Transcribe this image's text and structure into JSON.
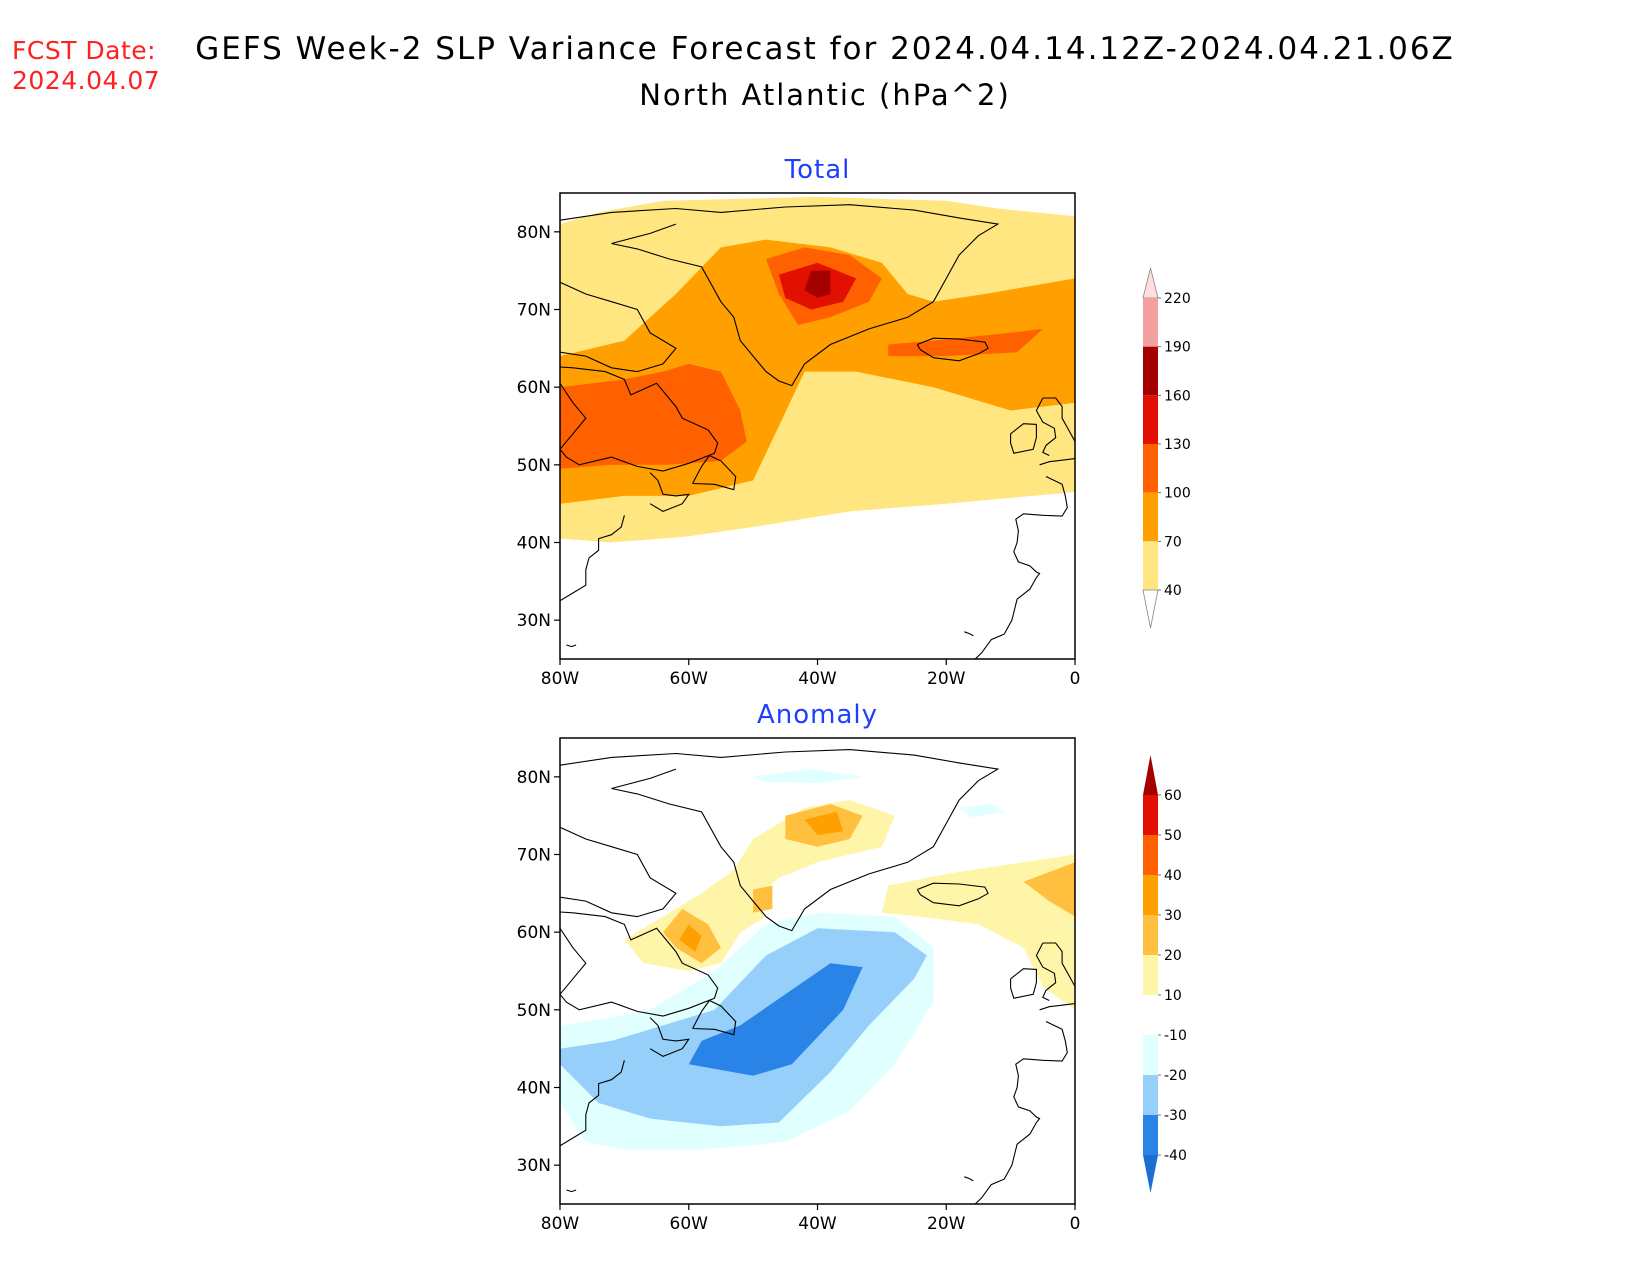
{
  "header": {
    "fcst_label": "FCST Date:",
    "fcst_date": "2024.04.07",
    "title": "GEFS Week-2 SLP Variance Forecast for 2024.04.14.12Z-2024.04.21.06Z",
    "subtitle": "North Atlantic (hPa^2)"
  },
  "map": {
    "lon_range": [
      -80,
      0
    ],
    "lat_range": [
      25,
      85
    ],
    "lat_ticks": [
      {
        "v": 80,
        "label": "80N"
      },
      {
        "v": 70,
        "label": "70N"
      },
      {
        "v": 60,
        "label": "60N"
      },
      {
        "v": 50,
        "label": "50N"
      },
      {
        "v": 40,
        "label": "40N"
      },
      {
        "v": 30,
        "label": "30N"
      }
    ],
    "lon_ticks": [
      {
        "v": -80,
        "label": "80W"
      },
      {
        "v": -60,
        "label": "60W"
      },
      {
        "v": -40,
        "label": "40W"
      },
      {
        "v": -20,
        "label": "20W"
      },
      {
        "v": 0,
        "label": "0"
      }
    ]
  },
  "panels": [
    {
      "title": "Total",
      "title_color": "#1f3fff",
      "legend": {
        "levels": [
          40,
          70,
          100,
          130,
          160,
          190,
          220
        ],
        "colors": [
          "#ffe680",
          "#ffa000",
          "#ff6000",
          "#e11000",
          "#a50000",
          "#f4a0a0",
          "#ffdede"
        ]
      },
      "regions": [
        {
          "level": 40,
          "pts": [
            [
              -80,
              81
            ],
            [
              -74,
              82.5
            ],
            [
              -64,
              84
            ],
            [
              -40,
              84.5
            ],
            [
              -20,
              84
            ],
            [
              -12,
              83
            ],
            [
              0,
              82
            ],
            [
              0,
              46.5
            ],
            [
              -20,
              45
            ],
            [
              -35,
              44
            ],
            [
              -50,
              42
            ],
            [
              -60,
              40.8
            ],
            [
              -72,
              40
            ],
            [
              -80,
              40.5
            ]
          ]
        },
        {
          "level": 70,
          "pts": [
            [
              -80,
              64
            ],
            [
              -70,
              66
            ],
            [
              -62,
              72
            ],
            [
              -55,
              78
            ],
            [
              -48,
              79
            ],
            [
              -38,
              78
            ],
            [
              -30,
              76
            ],
            [
              -26,
              72
            ],
            [
              -22,
              71
            ],
            [
              -14,
              72
            ],
            [
              0,
              74
            ],
            [
              0,
              58
            ],
            [
              -10,
              57
            ],
            [
              -22,
              60
            ],
            [
              -34,
              62
            ],
            [
              -42,
              62
            ],
            [
              -46,
              55
            ],
            [
              -50,
              48
            ],
            [
              -60,
              46
            ],
            [
              -70,
              46
            ],
            [
              -80,
              45
            ]
          ]
        },
        {
          "level": 100,
          "pts": [
            [
              -80,
              60
            ],
            [
              -70,
              61
            ],
            [
              -64,
              62
            ],
            [
              -60,
              63
            ],
            [
              -55,
              62
            ],
            [
              -52,
              57
            ],
            [
              -51,
              53
            ],
            [
              -55,
              50.5
            ],
            [
              -63,
              50
            ],
            [
              -72,
              50
            ],
            [
              -80,
              49.5
            ]
          ]
        },
        {
          "level": 100,
          "pts": [
            [
              -48,
              76.5
            ],
            [
              -42,
              78
            ],
            [
              -35,
              77
            ],
            [
              -30,
              74
            ],
            [
              -32,
              71
            ],
            [
              -38,
              69
            ],
            [
              -43,
              68
            ],
            [
              -46,
              72
            ]
          ]
        },
        {
          "level": 100,
          "pts": [
            [
              -29,
              65.5
            ],
            [
              -22,
              66
            ],
            [
              -10,
              67
            ],
            [
              -5,
              67.5
            ],
            [
              -9,
              64.5
            ],
            [
              -20,
              64
            ],
            [
              -29,
              64
            ]
          ]
        },
        {
          "level": 130,
          "pts": [
            [
              -46,
              74.5
            ],
            [
              -40,
              76
            ],
            [
              -34,
              74
            ],
            [
              -36,
              71
            ],
            [
              -41,
              70
            ],
            [
              -45,
              71.5
            ]
          ]
        },
        {
          "level": 160,
          "pts": [
            [
              -41,
              75
            ],
            [
              -38,
              75
            ],
            [
              -38,
              72
            ],
            [
              -40,
              71.5
            ],
            [
              -42,
              72.5
            ]
          ]
        }
      ]
    },
    {
      "title": "Anomaly",
      "title_color": "#1f3fff",
      "legend": {
        "levels": [
          -40,
          -30,
          -20,
          -10,
          10,
          20,
          30,
          40,
          50,
          60
        ],
        "colors": [
          "#1a6fd0",
          "#2a84e8",
          "#96d0fa",
          "#e0ffff",
          "#ffffff",
          "#fff5a8",
          "#ffc040",
          "#ffa000",
          "#ff6000",
          "#e11000",
          "#a50000"
        ]
      },
      "regions": [
        {
          "level": -10,
          "pts": [
            [
              -80,
              38
            ],
            [
              -76,
              33
            ],
            [
              -70,
              32
            ],
            [
              -58,
              32
            ],
            [
              -45,
              33
            ],
            [
              -35,
              37
            ],
            [
              -28,
              43
            ],
            [
              -22,
              51
            ],
            [
              -22,
              58
            ],
            [
              -28,
              62
            ],
            [
              -40,
              62.5
            ],
            [
              -48,
              61
            ],
            [
              -56,
              55
            ],
            [
              -60,
              53
            ],
            [
              -66,
              50
            ],
            [
              -72,
              49
            ],
            [
              -80,
              48
            ]
          ]
        },
        {
          "level": -10,
          "pts": [
            [
              -50,
              80
            ],
            [
              -41,
              81
            ],
            [
              -33,
              80
            ],
            [
              -40,
              79.2
            ],
            [
              -48,
              79.3
            ]
          ]
        },
        {
          "level": -10,
          "pts": [
            [
              -18,
              76
            ],
            [
              -13,
              76.5
            ],
            [
              -11,
              75.5
            ],
            [
              -16,
              74.8
            ]
          ]
        },
        {
          "level": -20,
          "pts": [
            [
              -80,
              43
            ],
            [
              -74,
              38
            ],
            [
              -66,
              36
            ],
            [
              -55,
              35
            ],
            [
              -46,
              35.5
            ],
            [
              -38,
              42
            ],
            [
              -32,
              48
            ],
            [
              -25,
              54
            ],
            [
              -23,
              57
            ],
            [
              -28,
              60
            ],
            [
              -40,
              60.5
            ],
            [
              -48,
              57
            ],
            [
              -56,
              50
            ],
            [
              -64,
              48
            ],
            [
              -72,
              46
            ],
            [
              -80,
              45
            ]
          ]
        },
        {
          "level": -30,
          "pts": [
            [
              -60,
              43
            ],
            [
              -50,
              41.5
            ],
            [
              -44,
              43
            ],
            [
              -36,
              50
            ],
            [
              -33,
              55.5
            ],
            [
              -38,
              56
            ],
            [
              -45,
              52
            ],
            [
              -52,
              48
            ],
            [
              -58,
              46
            ]
          ]
        },
        {
          "level": 10,
          "pts": [
            [
              -50,
              72
            ],
            [
              -42,
              76
            ],
            [
              -35,
              77
            ],
            [
              -28,
              75
            ],
            [
              -30,
              71
            ],
            [
              -40,
              69
            ],
            [
              -46,
              67
            ],
            [
              -50,
              64
            ],
            [
              -48,
              62
            ],
            [
              -52,
              60
            ],
            [
              -55,
              56
            ],
            [
              -60,
              55
            ],
            [
              -67,
              56
            ],
            [
              -70,
              59
            ],
            [
              -63,
              62.5
            ],
            [
              -58,
              65
            ],
            [
              -53,
              68
            ]
          ]
        },
        {
          "level": 10,
          "pts": [
            [
              -29,
              66
            ],
            [
              -20,
              67.5
            ],
            [
              -8,
              69
            ],
            [
              0,
              70
            ],
            [
              0,
              50
            ],
            [
              -5,
              53
            ],
            [
              -8,
              58
            ],
            [
              -15,
              61
            ],
            [
              -24,
              62
            ],
            [
              -30,
              62.5
            ]
          ]
        },
        {
          "level": 20,
          "pts": [
            [
              -45,
              75
            ],
            [
              -38,
              76.5
            ],
            [
              -33,
              75
            ],
            [
              -35,
              72
            ],
            [
              -40,
              71
            ],
            [
              -45,
              72
            ]
          ]
        },
        {
          "level": 20,
          "pts": [
            [
              -61,
              63
            ],
            [
              -57,
              61
            ],
            [
              -55,
              58
            ],
            [
              -58,
              56
            ],
            [
              -62,
              58
            ],
            [
              -64,
              60
            ]
          ]
        },
        {
          "level": 20,
          "pts": [
            [
              -50,
              65.5
            ],
            [
              -47,
              66
            ],
            [
              -47,
              63
            ],
            [
              -50,
              62.5
            ]
          ]
        },
        {
          "level": 20,
          "pts": [
            [
              -8,
              66.5
            ],
            [
              0,
              69
            ],
            [
              0,
              62
            ],
            [
              -4,
              64
            ]
          ]
        },
        {
          "level": 30,
          "pts": [
            [
              -42,
              74.5
            ],
            [
              -37,
              75.5
            ],
            [
              -36,
              73
            ],
            [
              -40,
              72.5
            ]
          ]
        },
        {
          "level": 30,
          "pts": [
            [
              -60,
              61
            ],
            [
              -58,
              59.5
            ],
            [
              -59,
              57.5
            ],
            [
              -61.5,
              59
            ]
          ]
        }
      ]
    }
  ]
}
